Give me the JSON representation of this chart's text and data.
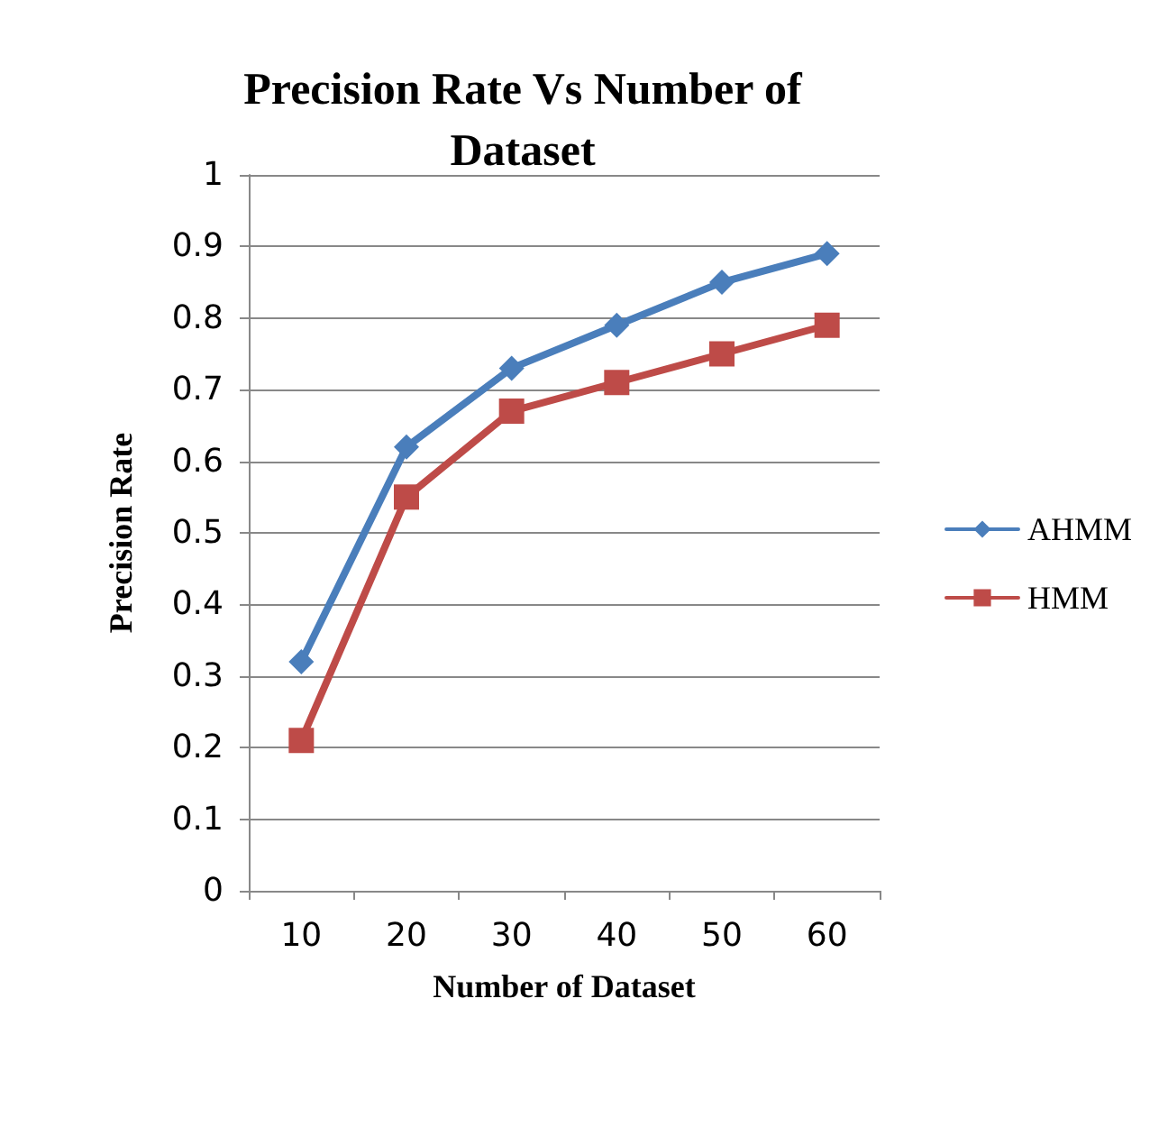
{
  "chart_data": {
    "type": "line",
    "title": "Precision Rate Vs Number of\nDataset",
    "xlabel": "Number of Dataset",
    "ylabel": "Precision Rate",
    "categories": [
      "10",
      "20",
      "30",
      "40",
      "50",
      "60"
    ],
    "series": [
      {
        "name": "AHMM",
        "color": "#4a7ebb",
        "marker": "diamond",
        "values": [
          0.32,
          0.62,
          0.73,
          0.79,
          0.85,
          0.89
        ]
      },
      {
        "name": "HMM",
        "color": "#be4b48",
        "marker": "square",
        "values": [
          0.21,
          0.55,
          0.67,
          0.71,
          0.75,
          0.79
        ]
      }
    ],
    "ylim": [
      0,
      1
    ],
    "yticks": [
      0,
      0.1,
      0.2,
      0.3,
      0.4,
      0.5,
      0.6,
      0.7,
      0.8,
      0.9,
      1
    ],
    "grid": "y",
    "legend": "right",
    "line_style": "solid"
  }
}
